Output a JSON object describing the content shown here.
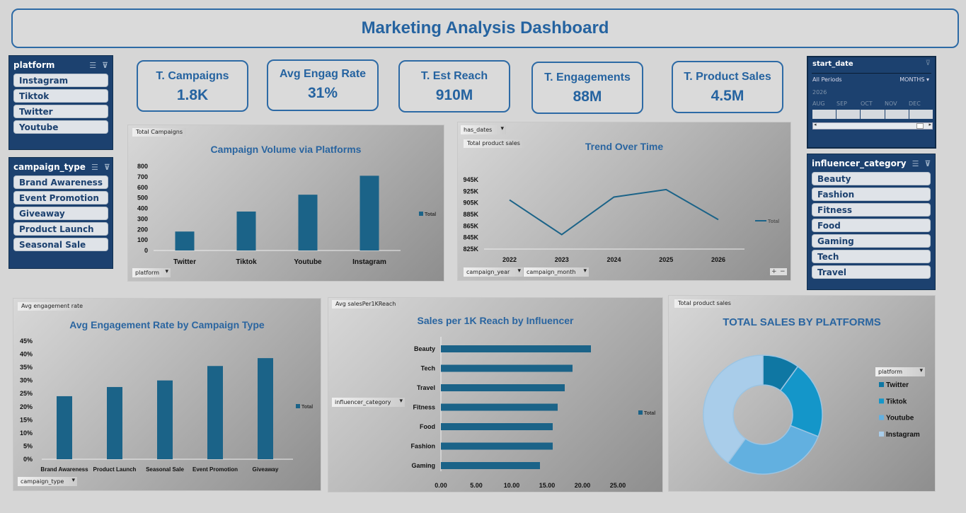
{
  "title": "Marketing Analysis Dashboard",
  "slicers": {
    "platform": {
      "label": "platform",
      "items": [
        "Instagram",
        "Tiktok",
        "Twitter",
        "Youtube"
      ]
    },
    "campaign_type": {
      "label": "campaign_type",
      "items": [
        "Brand Awareness",
        "Event Promotion",
        "Giveaway",
        "Product Launch",
        "Seasonal Sale"
      ]
    },
    "influencer_category": {
      "label": "influencer_category",
      "items": [
        "Beauty",
        "Fashion",
        "Fitness",
        "Food",
        "Gaming",
        "Tech",
        "Travel"
      ]
    }
  },
  "timeline": {
    "label": "start_date",
    "period": "All Periods",
    "unit": "MONTHS",
    "year": "2026",
    "months": [
      "AUG",
      "SEP",
      "OCT",
      "NOV",
      "DEC"
    ]
  },
  "kpis": [
    {
      "label": "T. Campaigns",
      "value": "1.8K"
    },
    {
      "label": "Avg Engag Rate",
      "value": "31%"
    },
    {
      "label": "T. Est Reach",
      "value": "910M"
    },
    {
      "label": "T. Engagements",
      "value": "88M"
    },
    {
      "label": "T. Product Sales",
      "value": "4.5M"
    }
  ],
  "colors": {
    "bar": "#1b6388",
    "accent": "#2a65a0",
    "slicer_bg": "#1c416f",
    "donut": [
      "#0f77a3",
      "#1496c9",
      "#62b0e0",
      "#a9cdea"
    ]
  },
  "panels": {
    "c1": {
      "field": "Total Campaigns",
      "filter": "platform"
    },
    "c2": {
      "field": "Total product  sales",
      "filter": "has_dates",
      "rows": [
        "campaign_year",
        "campaign_month"
      ]
    },
    "c3": {
      "field": "Avg engagement  rate",
      "filter": "campaign_type"
    },
    "c4": {
      "field": "Avg salesPer1KReach",
      "filter": "influencer_category"
    },
    "c5": {
      "field": "Total product  sales",
      "filter": "platform"
    }
  },
  "chart_data": [
    {
      "type": "bar",
      "title": "Campaign Volume via Platforms",
      "categories": [
        "Twitter",
        "Tiktok",
        "Youtube",
        "Instagram"
      ],
      "series": [
        {
          "name": "Total",
          "values": [
            180,
            370,
            530,
            710
          ]
        }
      ],
      "ylim": [
        0,
        800
      ],
      "yticks": [
        "0",
        "100",
        "200",
        "300",
        "400",
        "500",
        "600",
        "700",
        "800"
      ],
      "legend": "right"
    },
    {
      "type": "line",
      "title": "Trend Over Time",
      "categories": [
        "2022",
        "2023",
        "2024",
        "2025",
        "2026"
      ],
      "series": [
        {
          "name": "Total",
          "values": [
            910000,
            850000,
            915000,
            928000,
            876000
          ]
        }
      ],
      "ylim": [
        825000,
        945000
      ],
      "yticks": [
        "825K",
        "845K",
        "865K",
        "885K",
        "905K",
        "925K",
        "945K"
      ],
      "legend": "right"
    },
    {
      "type": "bar",
      "title": "Avg Engagement Rate by Campaign Type",
      "categories": [
        "Brand Awareness",
        "Product Launch",
        "Seasonal Sale",
        "Event Promotion",
        "Giveaway"
      ],
      "series": [
        {
          "name": "Total",
          "values": [
            0.24,
            0.275,
            0.3,
            0.355,
            0.385
          ]
        }
      ],
      "ylim": [
        0,
        0.45
      ],
      "yticks": [
        "0%",
        "5%",
        "10%",
        "15%",
        "20%",
        "25%",
        "30%",
        "35%",
        "40%",
        "45%"
      ],
      "legend": "right"
    },
    {
      "type": "bar",
      "orientation": "horizontal",
      "title": "Sales per 1K Reach by Influencer",
      "categories": [
        "Beauty",
        "Tech",
        "Travel",
        "Fitness",
        "Food",
        "Fashion",
        "Gaming"
      ],
      "series": [
        {
          "name": "Total",
          "values": [
            21.2,
            18.6,
            17.5,
            16.5,
            15.8,
            15.8,
            14.0
          ]
        }
      ],
      "xlim": [
        0,
        25
      ],
      "xticks": [
        "0.00",
        "5.00",
        "10.00",
        "15.00",
        "20.00",
        "25.00"
      ],
      "legend": "right"
    },
    {
      "type": "pie",
      "donut": true,
      "title": "TOTAL SALES BY PLATFORMS",
      "categories": [
        "Twitter",
        "Tiktok",
        "Youtube",
        "Instagram"
      ],
      "values": [
        10,
        21,
        29,
        40
      ],
      "legend": "right"
    }
  ]
}
